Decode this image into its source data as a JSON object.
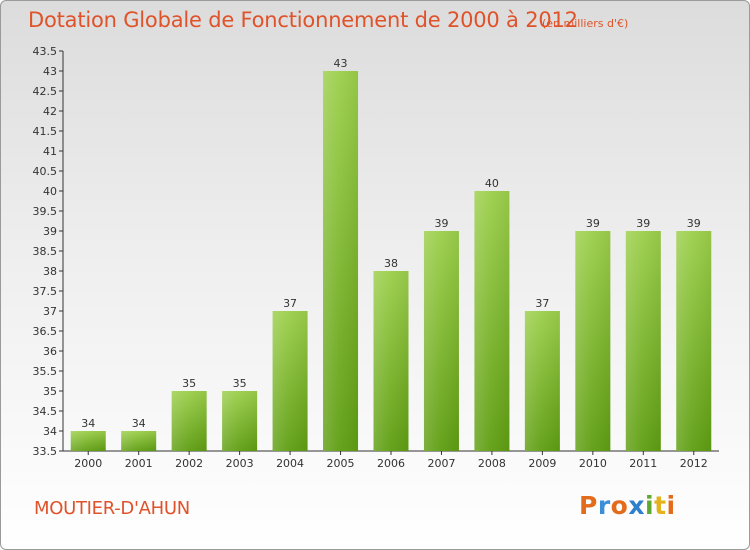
{
  "header": {
    "title": "Dotation Globale de Fonctionnement de 2000 à 2012",
    "unit": "(en milliers d'€)"
  },
  "footer": {
    "commune": "MOUTIER-D'AHUN",
    "logo": [
      "P",
      "r",
      "o",
      "x",
      "i",
      "t",
      "i"
    ]
  },
  "colors": {
    "title": "#e0522a",
    "bar_light": "#9ccf4b",
    "bar_dark": "#5f9e12",
    "logo": [
      "#e36c1c",
      "#3c8fd6",
      "#e36c1c",
      "#2f7fcf",
      "#5eaa2e",
      "#e3b21c",
      "#e36c1c"
    ]
  },
  "chart_data": {
    "type": "bar",
    "title": "Dotation Globale de Fonctionnement de 2000 à 2012",
    "subtitle": "(en milliers d'€)",
    "categories": [
      "2000",
      "2001",
      "2002",
      "2003",
      "2004",
      "2005",
      "2006",
      "2007",
      "2008",
      "2009",
      "2010",
      "2011",
      "2012"
    ],
    "values": [
      34,
      34,
      35,
      35,
      37,
      43,
      38,
      39,
      40,
      37,
      39,
      39,
      39
    ],
    "ylim": [
      33.5,
      43.5
    ],
    "yticks": [
      "33.5",
      "34",
      "34.5",
      "35",
      "35.5",
      "36",
      "36.5",
      "37",
      "37.5",
      "38",
      "38.5",
      "39",
      "39.5",
      "40",
      "40.5",
      "41",
      "41.5",
      "42",
      "42.5",
      "43",
      "43.5"
    ],
    "grid": false,
    "legend": "none"
  }
}
